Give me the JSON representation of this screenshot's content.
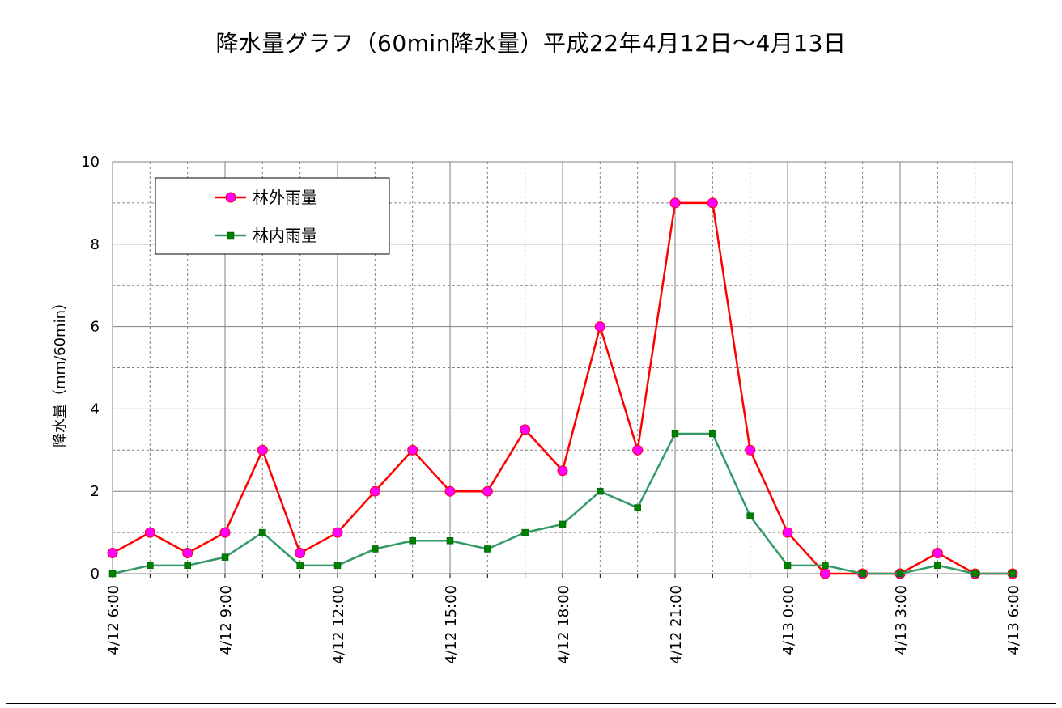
{
  "chart_data": {
    "type": "line",
    "title": "降水量グラフ（60min降水量）平成22年4月12日～4月13日",
    "ylabel": "降水量（mm/60min）",
    "xlabel": "",
    "ylim": [
      0,
      10
    ],
    "yticks": [
      "0",
      "2",
      "4",
      "6",
      "8",
      "10"
    ],
    "grid": true,
    "legend_position": "top-left",
    "x_tick_labels": [
      "4/12 6:00",
      "4/12 9:00",
      "4/12 12:00",
      "4/12 15:00",
      "4/12 18:00",
      "4/12 21:00",
      "4/13 0:00",
      "4/13 3:00",
      "4/13 6:00"
    ],
    "x": [
      "4/12 6:00",
      "4/12 7:00",
      "4/12 8:00",
      "4/12 9:00",
      "4/12 10:00",
      "4/12 11:00",
      "4/12 12:00",
      "4/12 13:00",
      "4/12 14:00",
      "4/12 15:00",
      "4/12 16:00",
      "4/12 17:00",
      "4/12 18:00",
      "4/12 19:00",
      "4/12 20:00",
      "4/12 21:00",
      "4/12 22:00",
      "4/12 23:00",
      "4/13 0:00",
      "4/13 1:00",
      "4/13 2:00",
      "4/13 3:00",
      "4/13 4:00",
      "4/13 5:00",
      "4/13 6:00"
    ],
    "series": [
      {
        "name": "林外雨量",
        "color": "#ff0000",
        "marker_color": "#ff00ff",
        "marker": "circle",
        "values": [
          0.5,
          1.0,
          0.5,
          1.0,
          3.0,
          0.5,
          1.0,
          2.0,
          3.0,
          2.0,
          2.0,
          3.5,
          2.5,
          6.0,
          3.0,
          9.0,
          9.0,
          3.0,
          1.0,
          0.0,
          0.0,
          0.0,
          0.5,
          0.0,
          0.0
        ]
      },
      {
        "name": "林内雨量",
        "color": "#339966",
        "marker_color": "#008000",
        "marker": "square",
        "values": [
          0.0,
          0.2,
          0.2,
          0.4,
          1.0,
          0.2,
          0.2,
          0.6,
          0.8,
          0.8,
          0.6,
          1.0,
          1.2,
          2.0,
          1.6,
          3.4,
          3.4,
          1.4,
          0.2,
          0.2,
          0.0,
          0.0,
          0.2,
          0.0,
          0.0
        ]
      }
    ]
  }
}
